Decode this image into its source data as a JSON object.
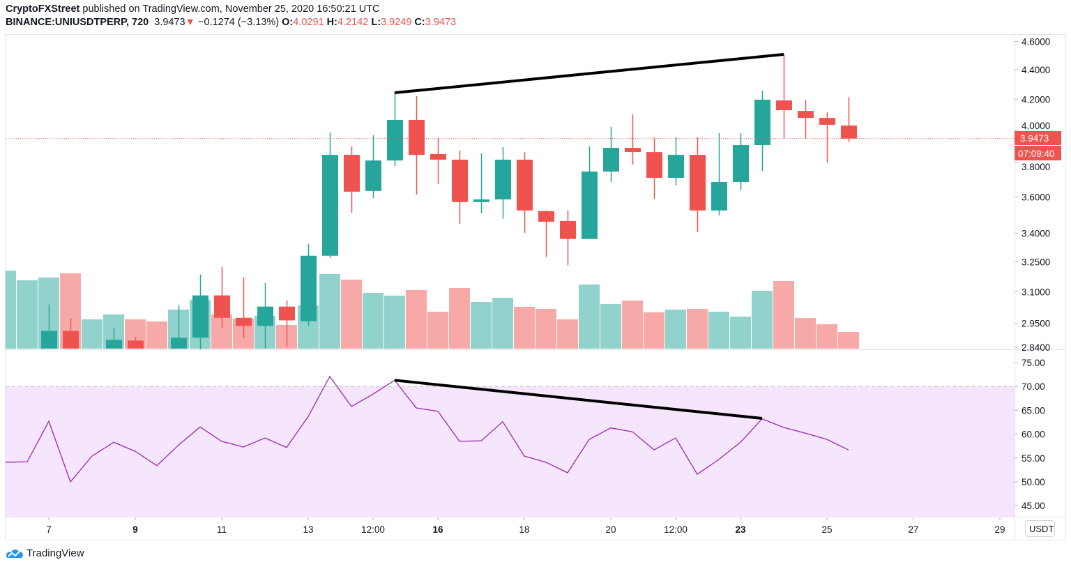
{
  "header": {
    "author": "CryptoFXStreet",
    "published_text": "published on TradingView.com, November 25, 2020 16:50:21 UTC",
    "symbol": "BINANCE:UNIUSDTPERP, 720",
    "last": "3.9473",
    "change": "−0.1274 (−3.13%)",
    "o_label": "O:",
    "o": "4.0291",
    "h_label": "H:",
    "h": "4.2142",
    "l_label": "L:",
    "l": "3.9249",
    "c_label": "C:",
    "c": "3.9473"
  },
  "currency_button": "USDT",
  "last_price_label": "3.9473",
  "countdown_label": "07:09:40",
  "footer": {
    "logo_text": "TradingView"
  },
  "colors": {
    "up": "#26a69a",
    "down": "#ef5350",
    "up_vol": "#92d2cc",
    "down_vol": "#f7a9a7",
    "rsi_line": "#9c27b0",
    "rsi_fill": "#f5e6fd",
    "trendline": "#000000"
  },
  "chart_data": {
    "type": "candlestick",
    "title": "BINANCE:UNIUSDTPERP, 720",
    "price_axis": {
      "scale": "log",
      "ticks": [
        "4.6000",
        "4.4000",
        "4.2000",
        "4.0000",
        "3.8000",
        "3.6000",
        "3.4000",
        "3.2500",
        "3.1000",
        "2.9500",
        "2.8400"
      ],
      "range": [
        2.84,
        4.6
      ]
    },
    "time_axis": {
      "ticks": [
        {
          "index": 2,
          "label": "7",
          "bold": false
        },
        {
          "index": 6,
          "label": "9",
          "bold": true
        },
        {
          "index": 10,
          "label": "11",
          "bold": false
        },
        {
          "index": 14,
          "label": "13",
          "bold": false
        },
        {
          "index": 17,
          "label": "12:00",
          "bold": false
        },
        {
          "index": 20,
          "label": "16",
          "bold": true
        },
        {
          "index": 24,
          "label": "18",
          "bold": false
        },
        {
          "index": 28,
          "label": "20",
          "bold": false
        },
        {
          "index": 31,
          "label": "12:00",
          "bold": false
        },
        {
          "index": 34,
          "label": "23",
          "bold": true
        },
        {
          "index": 38,
          "label": "25",
          "bold": false
        },
        {
          "index": 42,
          "label": "27",
          "bold": false
        },
        {
          "index": 46,
          "label": "29",
          "bold": false
        }
      ]
    },
    "candles": [
      null,
      null,
      {
        "o": 2.834,
        "h": 3.038,
        "l": 2.834,
        "c": 2.914
      },
      {
        "o": 2.914,
        "h": 2.972,
        "l": 2.834,
        "c": 2.834
      },
      null,
      {
        "o": 2.834,
        "h": 2.93,
        "l": 2.834,
        "c": 2.873
      },
      {
        "o": 2.87,
        "h": 2.886,
        "l": 2.834,
        "c": 2.834
      },
      null,
      {
        "o": 2.834,
        "h": 3.035,
        "l": 2.834,
        "c": 2.883
      },
      {
        "o": 2.883,
        "h": 3.185,
        "l": 2.831,
        "c": 3.082
      },
      {
        "o": 3.082,
        "h": 3.224,
        "l": 2.93,
        "c": 2.975
      },
      {
        "o": 2.975,
        "h": 3.171,
        "l": 2.883,
        "c": 2.937
      },
      {
        "o": 2.937,
        "h": 3.143,
        "l": 2.834,
        "c": 3.028
      },
      {
        "o": 3.028,
        "h": 3.058,
        "l": 2.84,
        "c": 2.963
      },
      {
        "o": 2.959,
        "h": 3.343,
        "l": 2.937,
        "c": 3.281
      },
      {
        "o": 3.281,
        "h": 3.985,
        "l": 3.27,
        "c": 3.847
      },
      {
        "o": 3.847,
        "h": 3.899,
        "l": 3.512,
        "c": 3.63
      },
      {
        "o": 3.634,
        "h": 3.968,
        "l": 3.594,
        "c": 3.813
      },
      {
        "o": 3.813,
        "h": 4.243,
        "l": 3.78,
        "c": 4.065
      },
      {
        "o": 4.065,
        "h": 4.22,
        "l": 3.614,
        "c": 3.847
      },
      {
        "o": 3.852,
        "h": 3.95,
        "l": 3.674,
        "c": 3.818
      },
      {
        "o": 3.818,
        "h": 3.873,
        "l": 3.451,
        "c": 3.571
      },
      {
        "o": 3.571,
        "h": 3.856,
        "l": 3.508,
        "c": 3.586
      },
      {
        "o": 3.586,
        "h": 3.894,
        "l": 3.478,
        "c": 3.818
      },
      {
        "o": 3.818,
        "h": 3.864,
        "l": 3.402,
        "c": 3.524
      },
      {
        "o": 3.52,
        "h": 3.524,
        "l": 3.274,
        "c": 3.462
      },
      {
        "o": 3.466,
        "h": 3.524,
        "l": 3.231,
        "c": 3.369
      },
      {
        "o": 3.369,
        "h": 3.899,
        "l": 3.369,
        "c": 3.747
      },
      {
        "o": 3.747,
        "h": 4.021,
        "l": 3.686,
        "c": 3.89
      },
      {
        "o": 3.89,
        "h": 4.101,
        "l": 3.788,
        "c": 3.864
      },
      {
        "o": 3.864,
        "h": 3.955,
        "l": 3.59,
        "c": 3.71
      },
      {
        "o": 3.71,
        "h": 3.955,
        "l": 3.666,
        "c": 3.847
      },
      {
        "o": 3.847,
        "h": 3.955,
        "l": 3.406,
        "c": 3.524
      },
      {
        "o": 3.524,
        "h": 3.981,
        "l": 3.497,
        "c": 3.686
      },
      {
        "o": 3.686,
        "h": 3.981,
        "l": 3.638,
        "c": 3.907
      },
      {
        "o": 3.907,
        "h": 4.257,
        "l": 3.751,
        "c": 4.197
      },
      {
        "o": 4.192,
        "h": 4.508,
        "l": 3.946,
        "c": 4.128
      },
      {
        "o": 4.123,
        "h": 4.197,
        "l": 3.946,
        "c": 4.078
      },
      {
        "o": 4.078,
        "h": 4.114,
        "l": 3.801,
        "c": 4.034
      },
      {
        "o": 4.0291,
        "h": 4.2142,
        "l": 3.9249,
        "c": 3.9473
      }
    ],
    "volume_relative": [
      112,
      98,
      102,
      108,
      42,
      49,
      42,
      39,
      56,
      70,
      49,
      43,
      47,
      34,
      62,
      107,
      99,
      80,
      76,
      84,
      53,
      87,
      67,
      73,
      60,
      57,
      42,
      92,
      64,
      69,
      52,
      56,
      57,
      53,
      46,
      83,
      97,
      44,
      35,
      24
    ],
    "volume_up": [
      true,
      true,
      true,
      false,
      true,
      true,
      false,
      false,
      true,
      true,
      false,
      false,
      true,
      false,
      true,
      true,
      false,
      true,
      true,
      false,
      false,
      false,
      true,
      true,
      false,
      false,
      false,
      true,
      true,
      false,
      false,
      true,
      false,
      true,
      true,
      true,
      false,
      false,
      false,
      false
    ],
    "last_price": 3.9473,
    "rsi": {
      "ticks": [
        "75.00",
        "70.00",
        "65.00",
        "60.00",
        "55.00",
        "50.00",
        "45.00"
      ],
      "range": [
        42,
        77
      ],
      "overbought": 70,
      "values": [
        54.1,
        54.2,
        62.7,
        50.0,
        55.4,
        58.3,
        56.4,
        53.4,
        57.7,
        61.5,
        58.5,
        57.3,
        59.2,
        57.2,
        63.7,
        72.1,
        65.8,
        68.4,
        71.3,
        65.5,
        64.8,
        58.5,
        58.6,
        62.6,
        55.4,
        54.1,
        51.9,
        58.9,
        61.3,
        60.5,
        56.7,
        59.2,
        51.6,
        54.7,
        58.3,
        63.2,
        61.4,
        60.2,
        58.9,
        56.7
      ]
    },
    "trendlines": [
      {
        "pane": "price",
        "from": {
          "index": 18,
          "value": 4.243
        },
        "to": {
          "index": 36,
          "value": 4.508
        }
      },
      {
        "pane": "rsi",
        "from": {
          "index": 18,
          "value": 71.3
        },
        "to": {
          "index": 35,
          "value": 63.3
        }
      }
    ]
  }
}
